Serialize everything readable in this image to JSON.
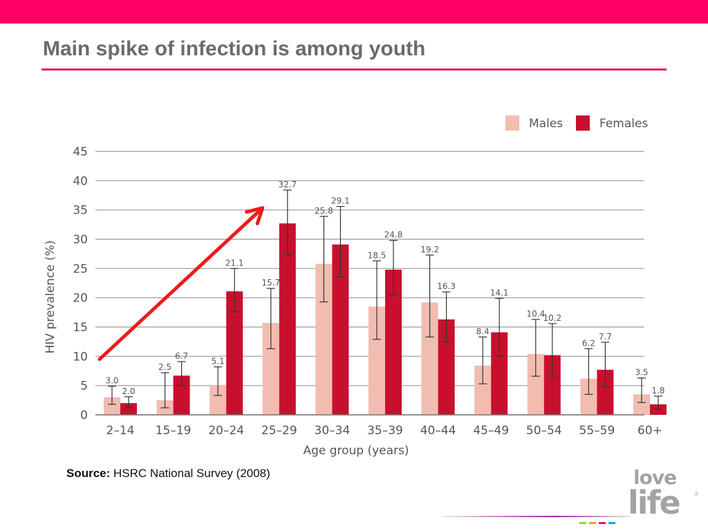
{
  "slide": {
    "title": "Main spike of infection is among youth",
    "source_label": "Source:",
    "source_text": "HSRC National Survey (2008)",
    "logo_top": "love",
    "logo_bottom": "life",
    "logo_mark": "®"
  },
  "colors": {
    "band": "#ff0066",
    "title_rule": "#e5196d",
    "males": "#f2bcb0",
    "females": "#c8102e",
    "arrow": "#ee1c1c",
    "grid": "#9a9a9a"
  },
  "chart_data": {
    "type": "bar",
    "xlabel": "Age group (years)",
    "ylabel": "HIV prevalence (%)",
    "ylim": [
      0,
      45
    ],
    "yticks": [
      0,
      5,
      10,
      15,
      20,
      25,
      30,
      35,
      40,
      45
    ],
    "grid": true,
    "legend_position": "top-right",
    "categories": [
      "2–14",
      "15–19",
      "20–24",
      "25–29",
      "30–34",
      "35–39",
      "40–44",
      "45–49",
      "50–54",
      "55–59",
      "60+"
    ],
    "series": [
      {
        "name": "Males",
        "values": [
          3.0,
          2.5,
          5.1,
          15.7,
          25.8,
          18.5,
          19.2,
          8.4,
          10.4,
          6.2,
          3.5
        ],
        "labels": [
          "3.0",
          "2.5",
          "5.1",
          "15.7",
          "25.8",
          "18.5",
          "19.2",
          "8.4",
          "10.4",
          "6.2",
          "3.5"
        ],
        "ci_low": [
          1.8,
          1.2,
          3.3,
          11.3,
          19.3,
          12.9,
          13.3,
          5.3,
          6.6,
          3.5,
          2.1
        ],
        "ci_high": [
          4.9,
          7.2,
          8.2,
          21.6,
          33.9,
          26.3,
          27.3,
          13.3,
          16.3,
          11.3,
          6.3
        ]
      },
      {
        "name": "Females",
        "values": [
          2.0,
          6.7,
          21.1,
          32.7,
          29.1,
          24.8,
          16.3,
          14.1,
          10.2,
          7.7,
          1.8
        ],
        "labels": [
          "2.0",
          "6.7",
          "21.1",
          "32.7",
          "29.1",
          "24.8",
          "16.3",
          "14.1",
          "10.2",
          "7.7",
          "1.8"
        ],
        "ci_low": [
          1.3,
          5.0,
          17.6,
          27.4,
          23.6,
          20.5,
          12.4,
          10.0,
          6.6,
          4.8,
          1.0
        ],
        "ci_high": [
          3.1,
          9.1,
          25.0,
          38.4,
          35.6,
          29.8,
          21.0,
          19.9,
          15.6,
          12.4,
          3.2
        ]
      }
    ],
    "annotation": {
      "type": "arrow",
      "from": {
        "x": "2–14",
        "y": 9.5
      },
      "to": {
        "x": "25–29",
        "y": 35
      }
    }
  }
}
